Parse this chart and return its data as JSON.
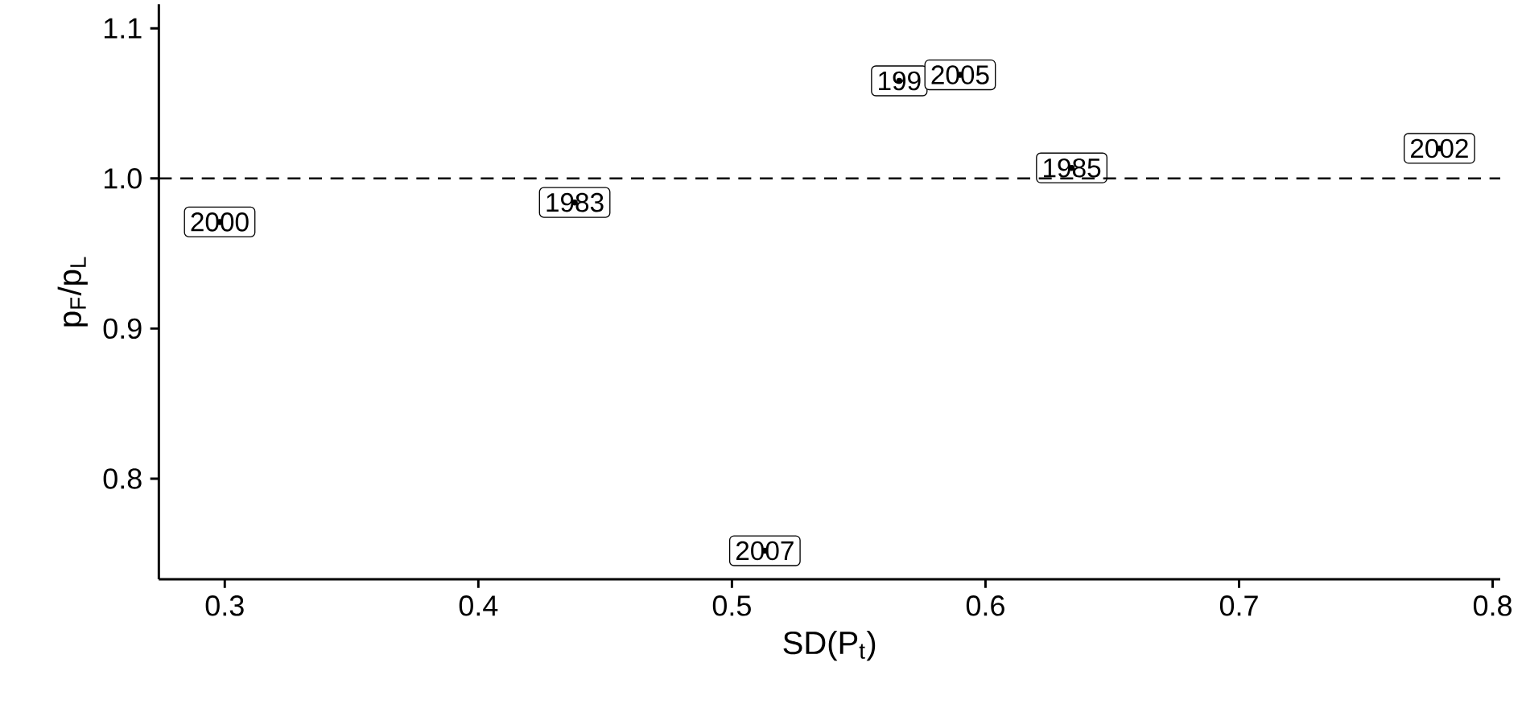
{
  "chart_data": {
    "type": "scatter",
    "xlabel": "SD(P$_{t}$)",
    "ylabel": "p$_{F}$/p$_{L}$",
    "x": [
      0.298,
      0.438,
      0.513,
      0.566,
      0.59,
      0.634,
      0.779
    ],
    "values": [
      0.971,
      0.984,
      0.752,
      1.065,
      1.069,
      1.007,
      1.02
    ],
    "grid": false,
    "xlim": [
      0.274,
      0.803
    ],
    "ylim": [
      0.733,
      1.116
    ],
    "xticks": [
      0.3,
      0.4,
      0.5,
      0.6,
      0.7,
      0.8
    ],
    "yticks": [
      0.8,
      0.9,
      {
        "value": 1.0,
        "label": "1.0"
      },
      1.1
    ],
    "ref_lines": [
      {
        "axis": "y",
        "value": 1.0,
        "line_style": "dashed",
        "color": "#000000"
      }
    ],
    "annotations": [
      {
        "text": "2000",
        "x": 0.298,
        "y": 0.971
      },
      {
        "text": "1983",
        "x": 0.438,
        "y": 0.984
      },
      {
        "text": "2007",
        "x": 0.513,
        "y": 0.752
      },
      {
        "text": "199",
        "x": 0.566,
        "y": 1.065
      },
      {
        "text": "2005",
        "x": 0.59,
        "y": 1.069
      },
      {
        "text": "1985",
        "x": 0.634,
        "y": 1.007
      },
      {
        "text": "2002",
        "x": 0.779,
        "y": 1.02
      }
    ]
  }
}
